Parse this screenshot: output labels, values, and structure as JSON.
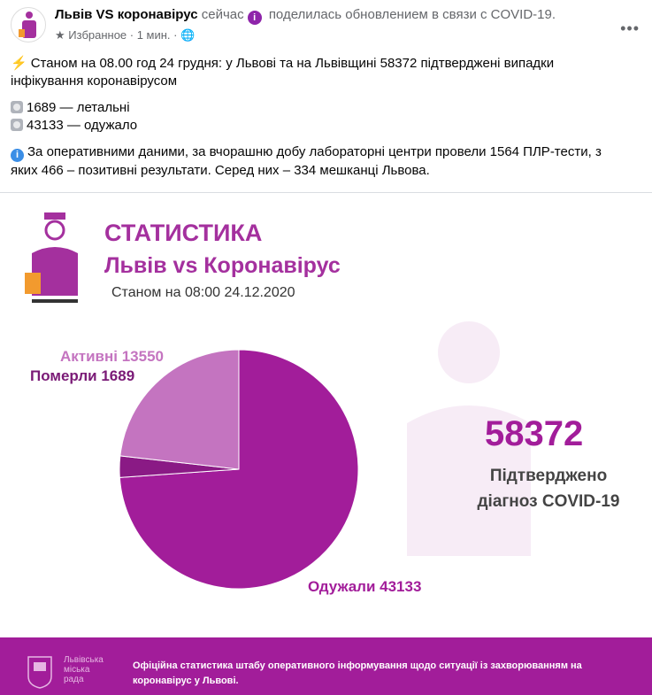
{
  "post": {
    "page_name": "Львів VS коронавірус",
    "time_now": "сейчас",
    "action": "поделилась обновлением в связи с COVID-19.",
    "meta": "Избранное · 1 мин. ·",
    "icons": [
      "star-icon",
      "globe-icon",
      "info-icon",
      "more-icon"
    ],
    "paragraph1": "Станом на 08.00 год 24 грудня: у Львові та на Львівщині 58372 підтверджені випадки інфікування коронавірусом",
    "deaths_line": "1689 — летальні",
    "recovered_line": "43133 — одужало",
    "paragraph3": "За оперативними даними, за вчорашню добу лабораторні центри провели 1564 ПЛР-тести, з яких 466 – позитивні результати. Серед них – 334 мешканці Львова."
  },
  "infographic": {
    "title": "СТАТИСТИКА",
    "subtitle": "Львів vs Коронавірус",
    "date": "Станом на 08:00 24.12.2020",
    "total": "58372",
    "total_label_1": "Підтверджено",
    "total_label_2": "діагноз COVID-19",
    "accent": "#a21d9a"
  },
  "chart_data": {
    "type": "pie",
    "slices": [
      {
        "label": "Одужали",
        "value": 43133,
        "color": "#a21d9a"
      },
      {
        "label": "Померли",
        "value": 1689,
        "color": "#8a1a85"
      },
      {
        "label": "Активні",
        "value": 13550,
        "color": "#c474c0"
      }
    ],
    "label_texts": [
      "Одужали 43133",
      "Померли 1689",
      "Активні 13550"
    ]
  },
  "banner": {
    "city": "Львівська міська рада",
    "text": "Офіційна статистика штабу оперативного інформування щодо ситуації із захворюванням на коронавірус у Львові."
  }
}
